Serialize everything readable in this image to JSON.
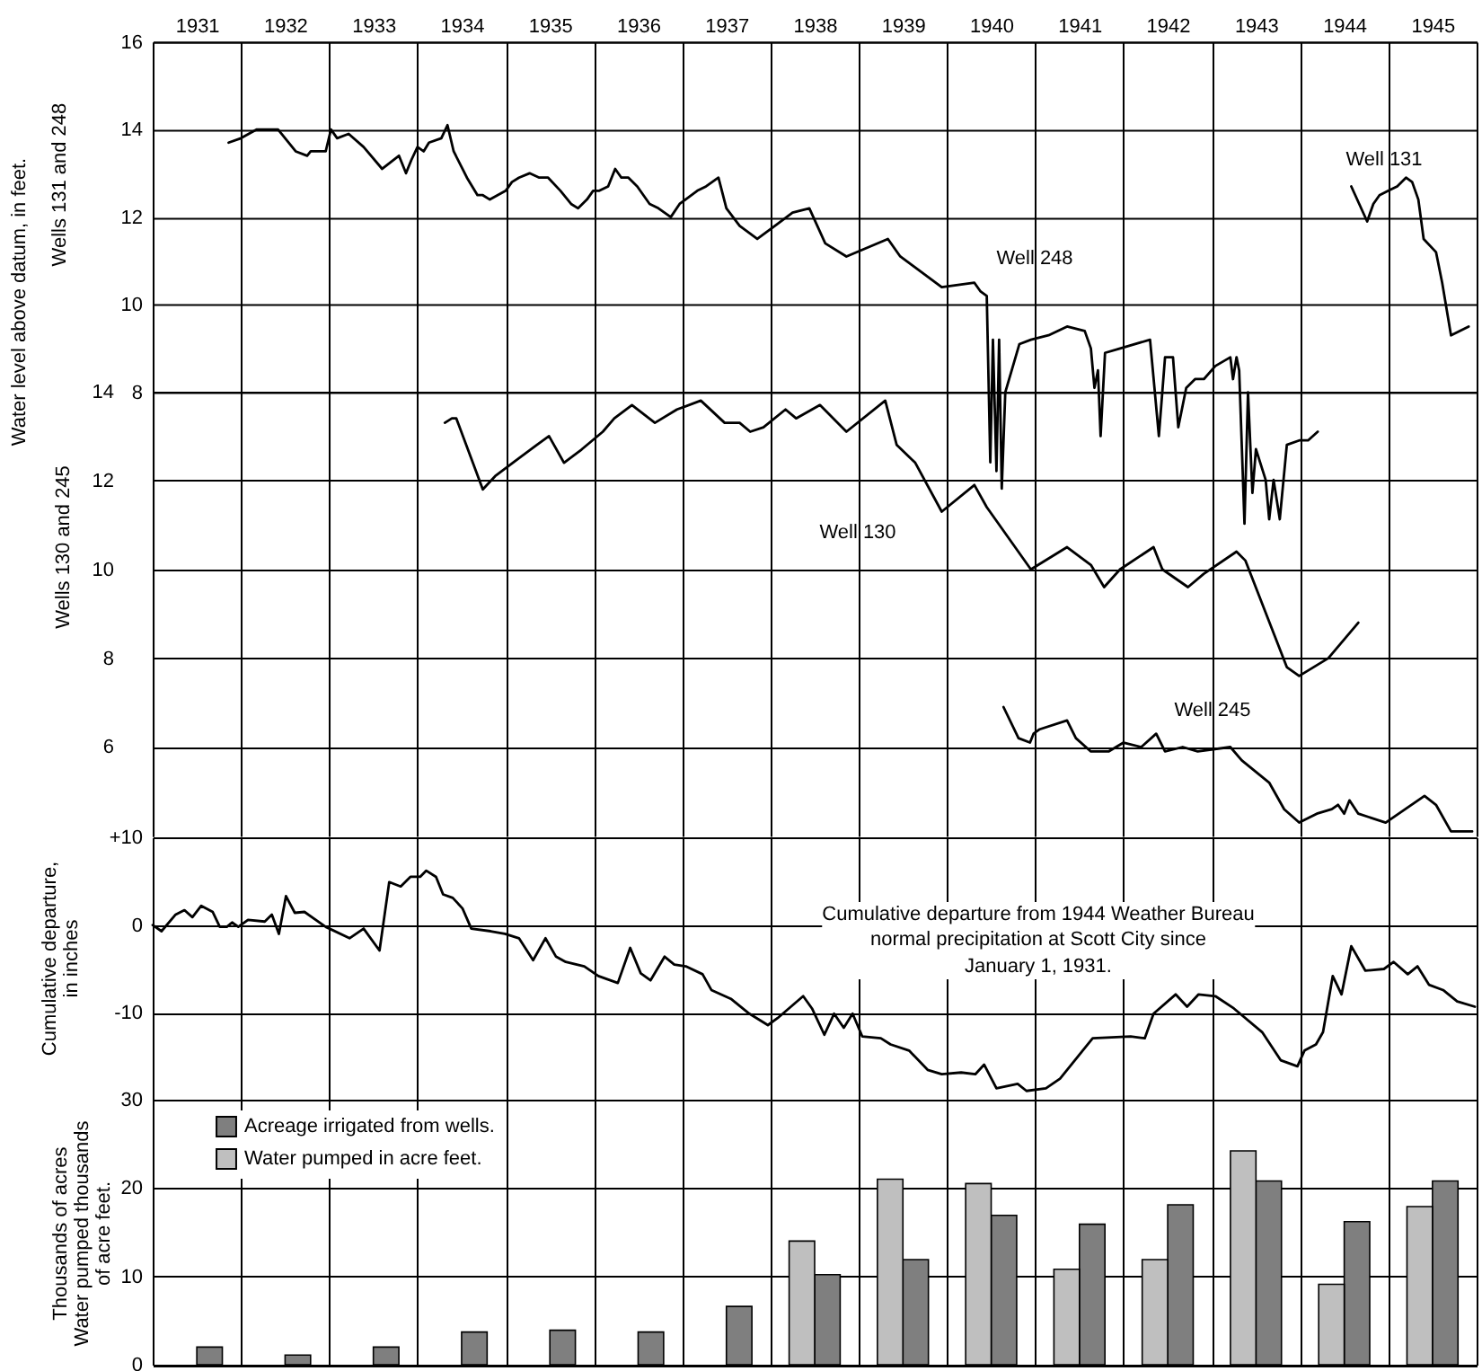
{
  "chart_data": [
    {
      "type": "line",
      "ylabel": "Wells 131 and 248",
      "annotations": [
        "Water level above datum, in feet."
      ],
      "xlim": [
        1931,
        1946
      ],
      "xticks": [
        {
          "value": 1931,
          "label": null
        },
        {
          "value": 1931.5,
          "label": "1931"
        },
        {
          "value": 1932,
          "label": null
        },
        {
          "value": 1932.5,
          "label": "1932"
        },
        {
          "value": 1933,
          "label": null
        },
        {
          "value": 1933.5,
          "label": "1933"
        },
        {
          "value": 1934,
          "label": null
        },
        {
          "value": 1934.5,
          "label": "1934"
        },
        {
          "value": 1935,
          "label": null
        },
        {
          "value": 1935.5,
          "label": "1935"
        },
        {
          "value": 1936,
          "label": null
        },
        {
          "value": 1936.5,
          "label": "1936"
        },
        {
          "value": 1937,
          "label": null
        },
        {
          "value": 1937.5,
          "label": "1937"
        },
        {
          "value": 1938,
          "label": null
        },
        {
          "value": 1938.5,
          "label": "1938"
        },
        {
          "value": 1939,
          "label": null
        },
        {
          "value": 1939.5,
          "label": "1939"
        },
        {
          "value": 1940,
          "label": null
        },
        {
          "value": 1940.5,
          "label": "1940"
        },
        {
          "value": 1941,
          "label": null
        },
        {
          "value": 1941.5,
          "label": "1941"
        },
        {
          "value": 1942,
          "label": null
        },
        {
          "value": 1942.5,
          "label": "1942"
        },
        {
          "value": 1943,
          "label": null
        },
        {
          "value": 1943.5,
          "label": "1943"
        },
        {
          "value": 1944,
          "label": null
        },
        {
          "value": 1944.5,
          "label": "1944"
        },
        {
          "value": 1945,
          "label": null
        },
        {
          "value": 1945.5,
          "label": "1945"
        },
        {
          "value": 1946,
          "label": null
        }
      ],
      "ylim": [
        4,
        16
      ],
      "yticks": [
        8,
        10,
        12,
        14,
        16
      ],
      "grid": true,
      "series": [
        {
          "name": "Well 248",
          "color": "#000000",
          "x": [
            1931.86,
            1932.0,
            1932.18,
            1932.42,
            1932.62,
            1932.75,
            1932.79,
            1932.96,
            1933.02,
            1933.09,
            1933.22,
            1933.39,
            1933.6,
            1933.79,
            1933.87,
            1933.93,
            1934.0,
            1934.07,
            1934.13,
            1934.27,
            1934.34,
            1934.41,
            1934.51,
            1934.56,
            1934.68,
            1934.74,
            1934.82,
            1935.0,
            1935.07,
            1935.15,
            1935.27,
            1935.38,
            1935.48,
            1935.62,
            1935.74,
            1935.82,
            1935.92,
            1935.99,
            1936.06,
            1936.16,
            1936.24,
            1936.31,
            1936.39,
            1936.49,
            1936.63,
            1936.73,
            1936.87,
            1936.97,
            1937.17,
            1937.27,
            1937.41,
            1937.5,
            1937.65,
            1937.85,
            1938.05,
            1938.25,
            1938.44,
            1938.62,
            1938.86,
            1939.33,
            1939.47,
            1939.94,
            1940.31,
            1940.38,
            1940.45,
            1940.49,
            1940.52,
            1940.56,
            1940.59,
            1940.62,
            1940.66,
            1940.82,
            1940.95,
            1941.15,
            1941.36,
            1941.56,
            1941.63,
            1941.67,
            1941.71,
            1941.74,
            1941.79,
            1941.96,
            1942.3,
            1942.4,
            1942.47,
            1942.56,
            1942.62,
            1942.71,
            1942.81,
            1942.91,
            1943.04,
            1943.21,
            1943.24,
            1943.28,
            1943.31,
            1943.37,
            1943.41,
            1943.46,
            1943.5,
            1943.61,
            1943.65,
            1943.7,
            1943.77,
            1943.85,
            1943.99,
            1944.09,
            1944.2
          ],
          "values": [
            13.7,
            13.8,
            14.0,
            14.0,
            13.5,
            13.4,
            13.5,
            13.5,
            14.0,
            13.8,
            13.9,
            13.6,
            13.1,
            13.4,
            13.0,
            13.3,
            13.6,
            13.5,
            13.7,
            13.8,
            14.1,
            13.5,
            13.1,
            12.9,
            12.5,
            12.5,
            12.4,
            12.6,
            12.8,
            12.9,
            13.0,
            12.9,
            12.9,
            12.6,
            12.3,
            12.2,
            12.4,
            12.6,
            12.6,
            12.7,
            13.1,
            12.9,
            12.9,
            12.7,
            12.3,
            12.2,
            12.0,
            12.3,
            12.6,
            12.7,
            12.9,
            12.2,
            11.8,
            11.5,
            11.8,
            12.1,
            12.2,
            11.4,
            11.1,
            11.5,
            11.1,
            10.4,
            10.5,
            10.3,
            10.2,
            6.4,
            9.2,
            6.2,
            9.2,
            5.8,
            8.0,
            9.1,
            9.2,
            9.3,
            9.5,
            9.4,
            9.0,
            8.1,
            8.5,
            7.0,
            8.9,
            9.0,
            9.2,
            7.0,
            8.8,
            8.8,
            7.2,
            8.1,
            8.3,
            8.3,
            8.6,
            8.8,
            8.3,
            8.8,
            8.5,
            5.0,
            8.0,
            5.7,
            6.7,
            6.0,
            5.1,
            6.0,
            5.1,
            6.8,
            6.9,
            6.9,
            7.1
          ]
        },
        {
          "name": "Well 131",
          "color": "#000000",
          "x": [
            1944.58,
            1944.76,
            1944.83,
            1944.9,
            1945.0,
            1945.1,
            1945.2,
            1945.27,
            1945.34,
            1945.4,
            1945.54,
            1945.61,
            1945.71,
            1945.91
          ],
          "values": [
            12.7,
            11.9,
            12.3,
            12.5,
            12.6,
            12.7,
            12.9,
            12.8,
            12.4,
            11.5,
            11.2,
            10.5,
            9.3,
            9.5
          ]
        }
      ]
    },
    {
      "type": "line",
      "ylabel": "Wells 130 and 245",
      "xlim": [
        1931,
        1946
      ],
      "xticks": [
        {
          "value": 1931,
          "label": null
        },
        {
          "value": 1932,
          "label": null
        },
        {
          "value": 1933,
          "label": null
        },
        {
          "value": 1934,
          "label": null
        },
        {
          "value": 1935,
          "label": null
        },
        {
          "value": 1936,
          "label": null
        },
        {
          "value": 1937,
          "label": null
        },
        {
          "value": 1938,
          "label": null
        },
        {
          "value": 1939,
          "label": null
        },
        {
          "value": 1940,
          "label": null
        },
        {
          "value": 1941,
          "label": null
        },
        {
          "value": 1942,
          "label": null
        },
        {
          "value": 1943,
          "label": null
        },
        {
          "value": 1944,
          "label": null
        },
        {
          "value": 1945,
          "label": null
        },
        {
          "value": 1946,
          "label": null
        }
      ],
      "ylim": [
        4,
        14
      ],
      "yticks": [
        6,
        8,
        10,
        12,
        14
      ],
      "grid": true,
      "tick_labels": "y",
      "series": [
        {
          "name": "Well 130",
          "color": "#000000",
          "x": [
            1934.31,
            1934.39,
            1934.44,
            1934.74,
            1934.88,
            1935.08,
            1935.35,
            1935.49,
            1935.66,
            1935.86,
            1936.1,
            1936.23,
            1936.43,
            1936.69,
            1936.94,
            1937.21,
            1937.48,
            1937.65,
            1937.77,
            1937.92,
            1938.17,
            1938.29,
            1938.56,
            1938.86,
            1939.3,
            1939.43,
            1939.64,
            1939.94,
            1940.31,
            1940.45,
            1940.95,
            1941.36,
            1941.63,
            1941.78,
            1941.96,
            1942.34,
            1942.44,
            1942.73,
            1942.91,
            1943.28,
            1943.38,
            1943.85,
            1943.99,
            1944.32,
            1944.66
          ],
          "values": [
            13.3,
            13.4,
            13.4,
            11.8,
            12.1,
            12.4,
            12.8,
            13.0,
            12.4,
            12.7,
            13.1,
            13.4,
            13.7,
            13.3,
            13.6,
            13.8,
            13.3,
            13.3,
            13.1,
            13.2,
            13.6,
            13.4,
            13.7,
            13.1,
            13.8,
            12.8,
            12.4,
            11.3,
            11.9,
            11.4,
            10.0,
            10.5,
            10.1,
            9.6,
            10.0,
            10.5,
            10.0,
            9.6,
            9.9,
            10.4,
            10.2,
            7.8,
            7.6,
            8.0,
            8.8
          ]
        },
        {
          "name": "Well 245",
          "color": "#000000",
          "x": [
            1940.64,
            1940.81,
            1940.94,
            1940.98,
            1941.05,
            1941.36,
            1941.46,
            1941.63,
            1941.83,
            1942.0,
            1942.2,
            1942.37,
            1942.47,
            1942.67,
            1942.84,
            1943.21,
            1943.34,
            1943.65,
            1943.82,
            1943.99,
            1944.19,
            1944.36,
            1944.43,
            1944.5,
            1944.56,
            1944.66,
            1944.97,
            1945.41,
            1945.54,
            1945.71,
            1945.95
          ],
          "values": [
            6.9,
            6.2,
            6.1,
            6.3,
            6.4,
            6.6,
            6.2,
            5.9,
            5.9,
            6.1,
            6.0,
            6.3,
            5.9,
            6.0,
            5.9,
            6.0,
            5.7,
            5.2,
            4.6,
            4.3,
            4.5,
            4.6,
            4.7,
            4.5,
            4.8,
            4.5,
            4.3,
            4.9,
            4.7,
            4.1,
            4.1
          ]
        }
      ]
    },
    {
      "type": "line",
      "ylabel": "Cumulative departure,\nin inches",
      "annotations": [
        "Cumulative departure from 1944 Weather Bureau\nnormal precipitation at Scott City since\nJanuary 1, 1931."
      ],
      "xlim": [
        1931,
        1946
      ],
      "xticks": [
        {
          "value": 1931,
          "label": null
        },
        {
          "value": 1932,
          "label": null
        },
        {
          "value": 1933,
          "label": null
        },
        {
          "value": 1934,
          "label": null
        },
        {
          "value": 1935,
          "label": null
        },
        {
          "value": 1936,
          "label": null
        },
        {
          "value": 1937,
          "label": null
        },
        {
          "value": 1938,
          "label": null
        },
        {
          "value": 1939,
          "label": null
        },
        {
          "value": 1940,
          "label": null
        },
        {
          "value": 1941,
          "label": null
        },
        {
          "value": 1942,
          "label": null
        },
        {
          "value": 1943,
          "label": null
        },
        {
          "value": 1944,
          "label": null
        },
        {
          "value": 1945,
          "label": null
        },
        {
          "value": 1946,
          "label": null
        }
      ],
      "ylim": [
        -20,
        10
      ],
      "yticks": [
        {
          "value": 10,
          "label": "+10"
        },
        0,
        -10
      ],
      "grid": true,
      "tick_labels": "y",
      "series": [
        {
          "color": "#000000",
          "x": [
            1931.0,
            1931.1,
            1931.26,
            1931.36,
            1931.45,
            1931.55,
            1931.68,
            1931.76,
            1931.84,
            1931.9,
            1931.97,
            1932.08,
            1932.27,
            1932.35,
            1932.43,
            1932.51,
            1932.61,
            1932.72,
            1932.96,
            1933.23,
            1933.39,
            1933.57,
            1933.68,
            1933.81,
            1933.92,
            1934.03,
            1934.1,
            1934.21,
            1934.29,
            1934.4,
            1934.51,
            1934.61,
            1934.83,
            1934.99,
            1935.15,
            1935.31,
            1935.45,
            1935.57,
            1935.68,
            1935.89,
            1936.05,
            1936.27,
            1936.41,
            1936.53,
            1936.64,
            1936.8,
            1936.91,
            1937.04,
            1937.23,
            1937.33,
            1937.55,
            1937.76,
            1937.97,
            1938.08,
            1938.37,
            1938.47,
            1938.61,
            1938.72,
            1938.83,
            1938.93,
            1939.04,
            1939.25,
            1939.36,
            1939.57,
            1939.78,
            1939.94,
            1940.16,
            1940.32,
            1940.42,
            1940.56,
            1940.8,
            1940.9,
            1941.12,
            1941.28,
            1941.65,
            1942.08,
            1942.24,
            1942.34,
            1942.59,
            1942.72,
            1942.85,
            1943.04,
            1943.25,
            1943.57,
            1943.78,
            1943.97,
            1944.05,
            1944.18,
            1944.26,
            1944.37,
            1944.47,
            1944.58,
            1944.74,
            1944.95,
            1945.06,
            1945.22,
            1945.33,
            1945.46,
            1945.62,
            1945.78,
            1945.98
          ],
          "values": [
            0.0,
            -0.7,
            1.2,
            1.7,
            0.9,
            2.2,
            1.5,
            -0.2,
            -0.2,
            0.3,
            -0.2,
            0.6,
            0.4,
            1.2,
            -1.0,
            3.3,
            1.4,
            1.5,
            -0.2,
            -1.5,
            -0.4,
            -2.9,
            4.9,
            4.4,
            5.5,
            5.5,
            6.2,
            5.5,
            3.5,
            3.1,
            1.9,
            -0.4,
            -0.7,
            -1.0,
            -1.5,
            -4.0,
            -1.5,
            -3.6,
            -4.2,
            -4.7,
            -5.8,
            -6.6,
            -2.6,
            -5.5,
            -6.3,
            -3.6,
            -4.5,
            -4.7,
            -5.6,
            -7.4,
            -8.4,
            -10.1,
            -11.4,
            -10.6,
            -8.1,
            -9.5,
            -12.5,
            -10.1,
            -11.7,
            -10.1,
            -12.7,
            -12.9,
            -13.6,
            -14.3,
            -16.5,
            -17.0,
            -16.8,
            -17.0,
            -15.9,
            -18.6,
            -18.1,
            -18.9,
            -18.6,
            -17.5,
            -12.9,
            -12.7,
            -12.9,
            -10.1,
            -7.9,
            -9.3,
            -7.9,
            -8.1,
            -9.5,
            -12.2,
            -15.4,
            -16.1,
            -14.3,
            -13.6,
            -12.2,
            -5.8,
            -7.9,
            -2.4,
            -5.2,
            -5.0,
            -4.2,
            -5.6,
            -4.7,
            -6.8,
            -7.4,
            -8.7,
            -9.3
          ]
        }
      ]
    },
    {
      "type": "bar",
      "ylabel": "Thousands of acres\nWater pumped thousands\nof acre feet.",
      "categories": [
        "1931",
        "1932",
        "1933",
        "1934",
        "1935",
        "1936",
        "1937",
        "1938",
        "1939",
        "1940",
        "1941",
        "1942",
        "1943",
        "1944",
        "1945"
      ],
      "ylim": [
        0,
        30
      ],
      "yticks": [
        0,
        10,
        20,
        30
      ],
      "grid": true,
      "tick_labels": "y",
      "legend": "top left",
      "series": [
        {
          "name": "Acreage irrigated from wells.",
          "color": "#7f7f7f",
          "values": [
            2.0,
            1.1,
            2.0,
            3.7,
            3.9,
            3.7,
            6.6,
            10.2,
            11.9,
            16.9,
            15.9,
            18.1,
            20.8,
            16.2,
            20.8
          ]
        },
        {
          "name": "Water pumped in acre feet.",
          "color": "#bfbfbf",
          "values": [
            null,
            null,
            null,
            null,
            null,
            null,
            null,
            14.0,
            21.0,
            20.5,
            10.8,
            11.9,
            24.2,
            9.1,
            17.9
          ]
        }
      ]
    }
  ]
}
